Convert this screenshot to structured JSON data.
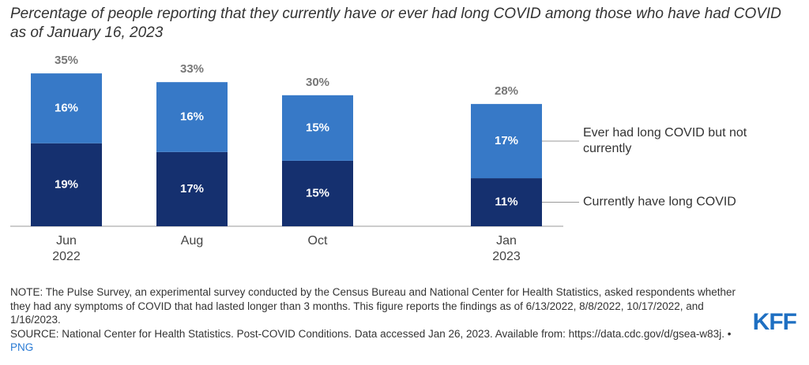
{
  "chart_data": {
    "type": "stacked_bar",
    "title": "Percentage of people reporting that they currently have or ever had long COVID among those who have had COVID as of January 16, 2023",
    "categories": [
      "Jun 2022",
      "Aug",
      "Oct",
      "Jan 2023"
    ],
    "series": [
      {
        "name": "Currently have long COVID",
        "color": "#15306f",
        "values": [
          19,
          17,
          15,
          11
        ],
        "value_labels": [
          "19%",
          "17%",
          "15%",
          "11%"
        ]
      },
      {
        "name": "Ever had long COVID but not currently",
        "color": "#3779c7",
        "values": [
          16,
          16,
          15,
          17
        ],
        "value_labels": [
          "16%",
          "16%",
          "15%",
          "17%"
        ]
      }
    ],
    "totals": [
      35,
      33,
      30,
      28
    ],
    "total_labels": [
      "35%",
      "33%",
      "30%",
      "28%"
    ]
  },
  "note": "NOTE: The Pulse Survey, an experimental survey conducted by the Census Bureau and National Center for Health Statistics, asked respondents whether they had any symptoms of COVID that had lasted longer than 3 months. This figure reports the findings as of 6/13/2022, 8/8/2022, 10/17/2022, and 1/16/2023.",
  "source": "SOURCE: National Center for Health Statistics. Post-COVID Conditions. Data accessed Jan 26, 2023. Available from: https://data.cdc.gov/d/gsea-w83j. •",
  "link": "PNG",
  "logo": "KFF"
}
